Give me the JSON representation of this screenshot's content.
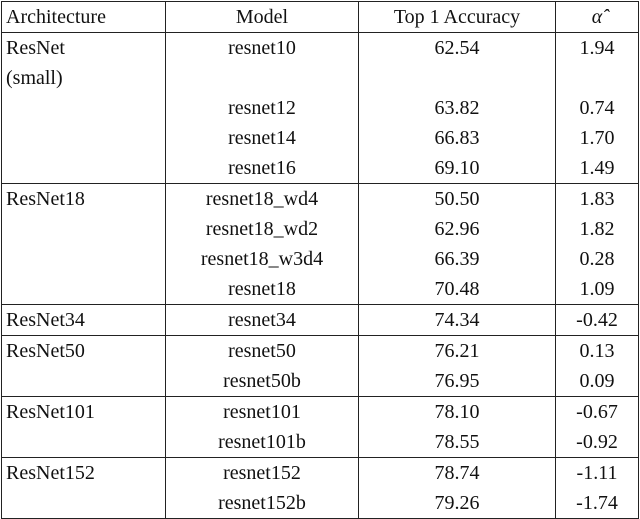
{
  "table": {
    "header": [
      "Architecture",
      "Model",
      "Top 1 Accuracy",
      "α̂"
    ],
    "groups": [
      {
        "architecture": "ResNet (small)",
        "rows": [
          [
            "resnet10",
            "62.54",
            "1.94"
          ],
          [
            "resnet12",
            "63.82",
            "0.74"
          ],
          [
            "resnet14",
            "66.83",
            "1.70"
          ],
          [
            "resnet16",
            "69.10",
            "1.49"
          ]
        ]
      },
      {
        "architecture": "ResNet18",
        "rows": [
          [
            "resnet18_wd4",
            "50.50",
            "1.83"
          ],
          [
            "resnet18_wd2",
            "62.96",
            "1.82"
          ],
          [
            "resnet18_w3d4",
            "66.39",
            "0.28"
          ],
          [
            "resnet18",
            "70.48",
            "1.09"
          ]
        ]
      },
      {
        "architecture": "ResNet34",
        "rows": [
          [
            "resnet34",
            "74.34",
            "-0.42"
          ]
        ]
      },
      {
        "architecture": "ResNet50",
        "rows": [
          [
            "resnet50",
            "76.21",
            "0.13"
          ],
          [
            "resnet50b",
            "76.95",
            "0.09"
          ]
        ]
      },
      {
        "architecture": "ResNet101",
        "rows": [
          [
            "resnet101",
            "78.10",
            "-0.67"
          ],
          [
            "resnet101b",
            "78.55",
            "-0.92"
          ]
        ]
      },
      {
        "architecture": "ResNet152",
        "rows": [
          [
            "resnet152",
            "78.74",
            "-1.11"
          ],
          [
            "resnet152b",
            "79.26",
            "-1.74"
          ]
        ]
      }
    ]
  }
}
